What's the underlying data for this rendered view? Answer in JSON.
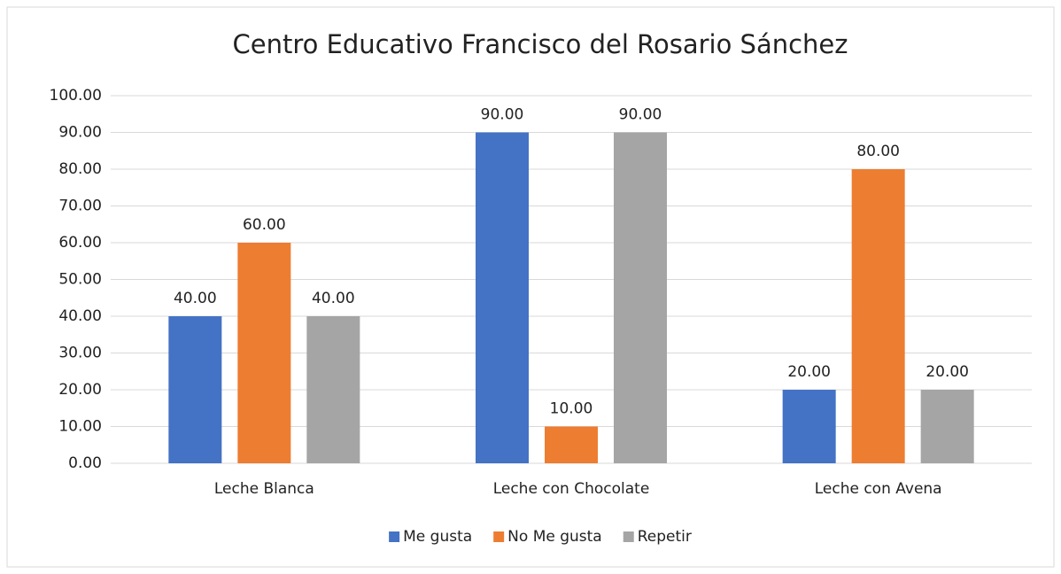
{
  "chart_data": {
    "type": "bar",
    "title": "Centro Educativo Francisco del Rosario Sánchez",
    "categories": [
      "Leche Blanca",
      "Leche con Chocolate",
      "Leche con Avena"
    ],
    "series": [
      {
        "name": "Me gusta",
        "color": "#4472c4",
        "values": [
          40,
          90,
          20
        ],
        "value_labels": [
          "40.00",
          "90.00",
          "20.00"
        ]
      },
      {
        "name": "No Me gusta",
        "color": "#ed7d31",
        "values": [
          60,
          10,
          80
        ],
        "value_labels": [
          "60.00",
          "10.00",
          "80.00"
        ]
      },
      {
        "name": "Repetir",
        "color": "#a5a5a5",
        "values": [
          40,
          90,
          20
        ],
        "value_labels": [
          "40.00",
          "90.00",
          "20.00"
        ]
      }
    ],
    "ylim": [
      0,
      100
    ],
    "yticks": [
      {
        "value": 0,
        "label": "0.00"
      },
      {
        "value": 10,
        "label": "10.00"
      },
      {
        "value": 20,
        "label": "20.00"
      },
      {
        "value": 30,
        "label": "30.00"
      },
      {
        "value": 40,
        "label": "40.00"
      },
      {
        "value": 50,
        "label": "50.00"
      },
      {
        "value": 60,
        "label": "60.00"
      },
      {
        "value": 70,
        "label": "70.00"
      },
      {
        "value": 80,
        "label": "80.00"
      },
      {
        "value": 90,
        "label": "90.00"
      },
      {
        "value": 100,
        "label": "100.00"
      }
    ],
    "grid": true,
    "legend": "bottom"
  }
}
